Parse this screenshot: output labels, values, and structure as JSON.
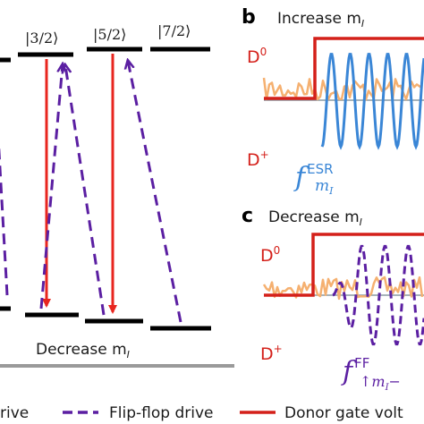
{
  "colors": {
    "level": "#000000",
    "esr_arrow": "#e8261f",
    "flipflop_arrow": "#5b1fa2",
    "gate_voltage": "#d4201a",
    "noise": "#f5b070",
    "esr_wave": "#3a86d6",
    "ff_wave": "#5b1fa2",
    "baseline_gray": "#8a9aa4",
    "ground_line": "#9a9a9a"
  },
  "panel_a": {
    "kets": [
      "|3/2⟩",
      "|5/2⟩",
      "|7/2⟩"
    ],
    "bottom_label": "Decrease m",
    "bottom_label_sub": "I"
  },
  "panel_b": {
    "letter": "b",
    "title": "Increase m",
    "title_sub": "I",
    "d0": "D",
    "d0_sup": "0",
    "dplus": "D",
    "dplus_sup": "+",
    "f_label": "f",
    "f_sup": "ESR",
    "f_sub": "m",
    "f_sub_sub": "I"
  },
  "panel_c": {
    "letter": "c",
    "title": "Decrease m",
    "title_sub": "I",
    "d0": "D",
    "d0_sup": "0",
    "dplus": "D",
    "dplus_sup": "+",
    "f_label": "f",
    "f_sup": "FF",
    "f_sub": "↑m",
    "f_sub_sub": "I",
    "f_sub_tail": "−"
  },
  "legend": {
    "items": [
      {
        "label": "rive",
        "style": "solid",
        "color": "#e8261f"
      },
      {
        "label": "Flip-flop drive",
        "style": "dashed",
        "color": "#5b1fa2"
      },
      {
        "label": "Donor gate volt",
        "style": "solid",
        "color": "#d4201a"
      }
    ]
  }
}
